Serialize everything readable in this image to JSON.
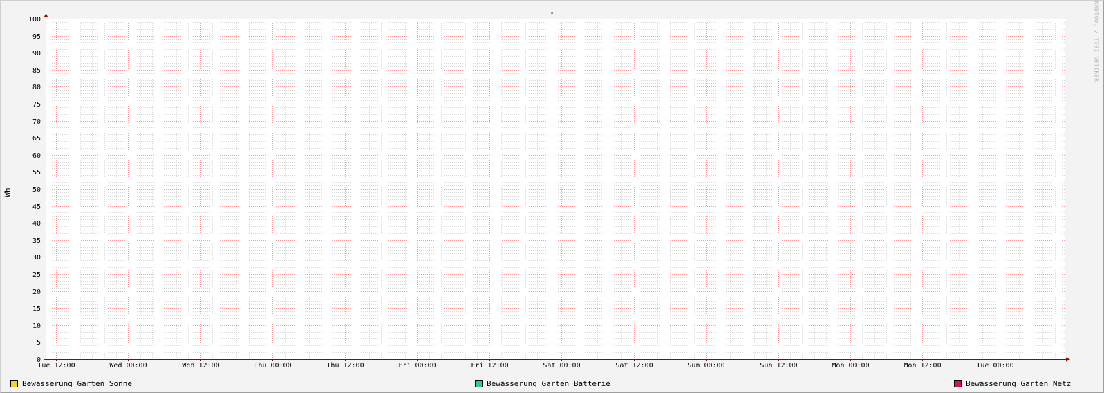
{
  "chart_data": {
    "type": "line",
    "title": "-",
    "xlabel": "",
    "ylabel": "Wh",
    "ylim": [
      0,
      100
    ],
    "y_ticks": [
      0,
      5,
      10,
      15,
      20,
      25,
      30,
      35,
      40,
      45,
      50,
      55,
      60,
      65,
      70,
      75,
      80,
      85,
      90,
      95,
      100
    ],
    "x_ticks": [
      "Tue 12:00",
      "Wed 00:00",
      "Wed 12:00",
      "Thu 00:00",
      "Thu 12:00",
      "Fri 00:00",
      "Fri 12:00",
      "Sat 00:00",
      "Sat 12:00",
      "Sun 00:00",
      "Sun 12:00",
      "Mon 00:00",
      "Mon 12:00",
      "Tue 00:00"
    ],
    "grid": true,
    "legend_position": "bottom",
    "series": [
      {
        "name": "Bewässerung Garten Sonne",
        "color": "#f2d22b",
        "values": []
      },
      {
        "name": "Bewässerung Garten Batterie",
        "color": "#2ec9a0",
        "values": []
      },
      {
        "name": "Bewässerung Garten Netz",
        "color": "#e0104a",
        "values": []
      }
    ]
  },
  "watermark": "RRDTOOL / TOBI OETIKER",
  "colors": {
    "major_grid": "#ff9a9a",
    "minor_grid": "#d9d9d9",
    "axis": "#9b0000"
  }
}
